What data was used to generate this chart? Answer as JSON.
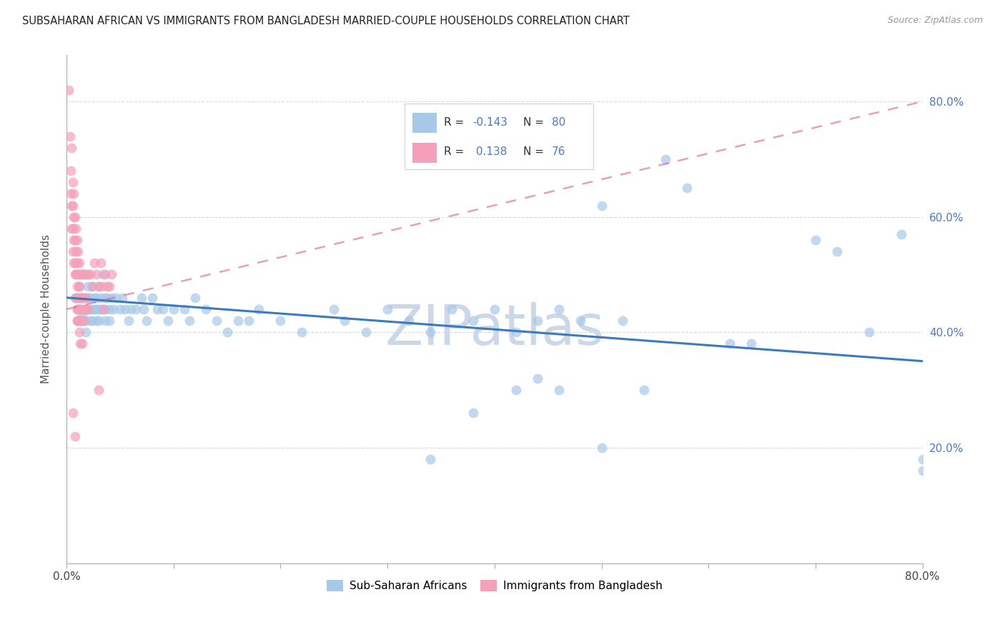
{
  "title": "SUBSAHARAN AFRICAN VS IMMIGRANTS FROM BANGLADESH MARRIED-COUPLE HOUSEHOLDS CORRELATION CHART",
  "source": "Source: ZipAtlas.com",
  "ylabel": "Married-couple Households",
  "blue_color": "#a8c8e8",
  "pink_color": "#f4a0b8",
  "trendline_blue": "#3a7abf",
  "trendline_pink": "#d96080",
  "watermark": "ZIPatlas",
  "watermark_color": "#ccd8e8",
  "grid_color": "#d8d8d8",
  "right_axis_color": "#4a7abf",
  "blue_scatter": [
    [
      0.008,
      0.46
    ],
    [
      0.01,
      0.5
    ],
    [
      0.01,
      0.44
    ],
    [
      0.01,
      0.42
    ],
    [
      0.012,
      0.48
    ],
    [
      0.012,
      0.44
    ],
    [
      0.014,
      0.46
    ],
    [
      0.015,
      0.43
    ],
    [
      0.015,
      0.42
    ],
    [
      0.016,
      0.5
    ],
    [
      0.016,
      0.46
    ],
    [
      0.017,
      0.44
    ],
    [
      0.018,
      0.42
    ],
    [
      0.018,
      0.4
    ],
    [
      0.02,
      0.48
    ],
    [
      0.02,
      0.46
    ],
    [
      0.02,
      0.44
    ],
    [
      0.022,
      0.46
    ],
    [
      0.022,
      0.44
    ],
    [
      0.022,
      0.42
    ],
    [
      0.024,
      0.48
    ],
    [
      0.024,
      0.44
    ],
    [
      0.024,
      0.42
    ],
    [
      0.026,
      0.46
    ],
    [
      0.026,
      0.44
    ],
    [
      0.028,
      0.46
    ],
    [
      0.028,
      0.44
    ],
    [
      0.028,
      0.42
    ],
    [
      0.03,
      0.48
    ],
    [
      0.03,
      0.44
    ],
    [
      0.03,
      0.42
    ],
    [
      0.032,
      0.46
    ],
    [
      0.032,
      0.44
    ],
    [
      0.034,
      0.5
    ],
    [
      0.034,
      0.44
    ],
    [
      0.036,
      0.46
    ],
    [
      0.036,
      0.44
    ],
    [
      0.036,
      0.42
    ],
    [
      0.038,
      0.46
    ],
    [
      0.04,
      0.44
    ],
    [
      0.04,
      0.42
    ],
    [
      0.042,
      0.46
    ],
    [
      0.044,
      0.44
    ],
    [
      0.046,
      0.46
    ],
    [
      0.05,
      0.44
    ],
    [
      0.052,
      0.46
    ],
    [
      0.055,
      0.44
    ],
    [
      0.058,
      0.42
    ],
    [
      0.06,
      0.44
    ],
    [
      0.065,
      0.44
    ],
    [
      0.07,
      0.46
    ],
    [
      0.072,
      0.44
    ],
    [
      0.075,
      0.42
    ],
    [
      0.08,
      0.46
    ],
    [
      0.085,
      0.44
    ],
    [
      0.09,
      0.44
    ],
    [
      0.095,
      0.42
    ],
    [
      0.1,
      0.44
    ],
    [
      0.11,
      0.44
    ],
    [
      0.115,
      0.42
    ],
    [
      0.12,
      0.46
    ],
    [
      0.13,
      0.44
    ],
    [
      0.14,
      0.42
    ],
    [
      0.15,
      0.4
    ],
    [
      0.16,
      0.42
    ],
    [
      0.17,
      0.42
    ],
    [
      0.18,
      0.44
    ],
    [
      0.2,
      0.42
    ],
    [
      0.22,
      0.4
    ],
    [
      0.25,
      0.44
    ],
    [
      0.26,
      0.42
    ],
    [
      0.28,
      0.4
    ],
    [
      0.3,
      0.44
    ],
    [
      0.32,
      0.42
    ],
    [
      0.34,
      0.4
    ],
    [
      0.36,
      0.44
    ],
    [
      0.38,
      0.42
    ],
    [
      0.4,
      0.44
    ],
    [
      0.42,
      0.4
    ],
    [
      0.44,
      0.42
    ],
    [
      0.46,
      0.44
    ],
    [
      0.48,
      0.42
    ],
    [
      0.34,
      0.18
    ],
    [
      0.38,
      0.26
    ],
    [
      0.42,
      0.3
    ],
    [
      0.44,
      0.32
    ],
    [
      0.46,
      0.3
    ],
    [
      0.5,
      0.2
    ],
    [
      0.52,
      0.42
    ],
    [
      0.54,
      0.3
    ],
    [
      0.48,
      0.72
    ],
    [
      0.5,
      0.62
    ],
    [
      0.56,
      0.7
    ],
    [
      0.58,
      0.65
    ],
    [
      0.62,
      0.38
    ],
    [
      0.64,
      0.38
    ],
    [
      0.7,
      0.56
    ],
    [
      0.72,
      0.54
    ],
    [
      0.75,
      0.4
    ],
    [
      0.78,
      0.57
    ],
    [
      0.8,
      0.18
    ],
    [
      0.8,
      0.16
    ]
  ],
  "pink_scatter": [
    [
      0.002,
      0.82
    ],
    [
      0.003,
      0.74
    ],
    [
      0.004,
      0.68
    ],
    [
      0.004,
      0.64
    ],
    [
      0.005,
      0.72
    ],
    [
      0.005,
      0.62
    ],
    [
      0.005,
      0.58
    ],
    [
      0.006,
      0.66
    ],
    [
      0.006,
      0.62
    ],
    [
      0.006,
      0.58
    ],
    [
      0.006,
      0.54
    ],
    [
      0.007,
      0.64
    ],
    [
      0.007,
      0.6
    ],
    [
      0.007,
      0.56
    ],
    [
      0.007,
      0.52
    ],
    [
      0.008,
      0.6
    ],
    [
      0.008,
      0.56
    ],
    [
      0.008,
      0.52
    ],
    [
      0.008,
      0.5
    ],
    [
      0.009,
      0.58
    ],
    [
      0.009,
      0.54
    ],
    [
      0.009,
      0.5
    ],
    [
      0.009,
      0.46
    ],
    [
      0.01,
      0.56
    ],
    [
      0.01,
      0.52
    ],
    [
      0.01,
      0.48
    ],
    [
      0.01,
      0.46
    ],
    [
      0.01,
      0.44
    ],
    [
      0.01,
      0.42
    ],
    [
      0.011,
      0.54
    ],
    [
      0.011,
      0.5
    ],
    [
      0.011,
      0.46
    ],
    [
      0.011,
      0.44
    ],
    [
      0.011,
      0.42
    ],
    [
      0.012,
      0.52
    ],
    [
      0.012,
      0.48
    ],
    [
      0.012,
      0.44
    ],
    [
      0.012,
      0.42
    ],
    [
      0.012,
      0.4
    ],
    [
      0.013,
      0.5
    ],
    [
      0.013,
      0.46
    ],
    [
      0.013,
      0.44
    ],
    [
      0.013,
      0.42
    ],
    [
      0.013,
      0.38
    ],
    [
      0.014,
      0.5
    ],
    [
      0.014,
      0.46
    ],
    [
      0.014,
      0.44
    ],
    [
      0.014,
      0.42
    ],
    [
      0.015,
      0.5
    ],
    [
      0.015,
      0.46
    ],
    [
      0.015,
      0.44
    ],
    [
      0.015,
      0.38
    ],
    [
      0.016,
      0.5
    ],
    [
      0.016,
      0.46
    ],
    [
      0.016,
      0.42
    ],
    [
      0.018,
      0.5
    ],
    [
      0.018,
      0.46
    ],
    [
      0.018,
      0.44
    ],
    [
      0.02,
      0.5
    ],
    [
      0.02,
      0.44
    ],
    [
      0.022,
      0.5
    ],
    [
      0.024,
      0.48
    ],
    [
      0.026,
      0.52
    ],
    [
      0.028,
      0.5
    ],
    [
      0.03,
      0.48
    ],
    [
      0.03,
      0.3
    ],
    [
      0.032,
      0.52
    ],
    [
      0.034,
      0.48
    ],
    [
      0.035,
      0.44
    ],
    [
      0.036,
      0.5
    ],
    [
      0.038,
      0.48
    ],
    [
      0.04,
      0.48
    ],
    [
      0.042,
      0.5
    ],
    [
      0.006,
      0.26
    ],
    [
      0.008,
      0.22
    ]
  ],
  "xlim": [
    0.0,
    0.8
  ],
  "ylim": [
    0.0,
    0.88
  ],
  "y_ticks": [
    0.2,
    0.4,
    0.6,
    0.8
  ],
  "x_tick_positions": [
    0.0,
    0.1,
    0.2,
    0.3,
    0.4,
    0.5,
    0.6,
    0.7,
    0.8
  ]
}
